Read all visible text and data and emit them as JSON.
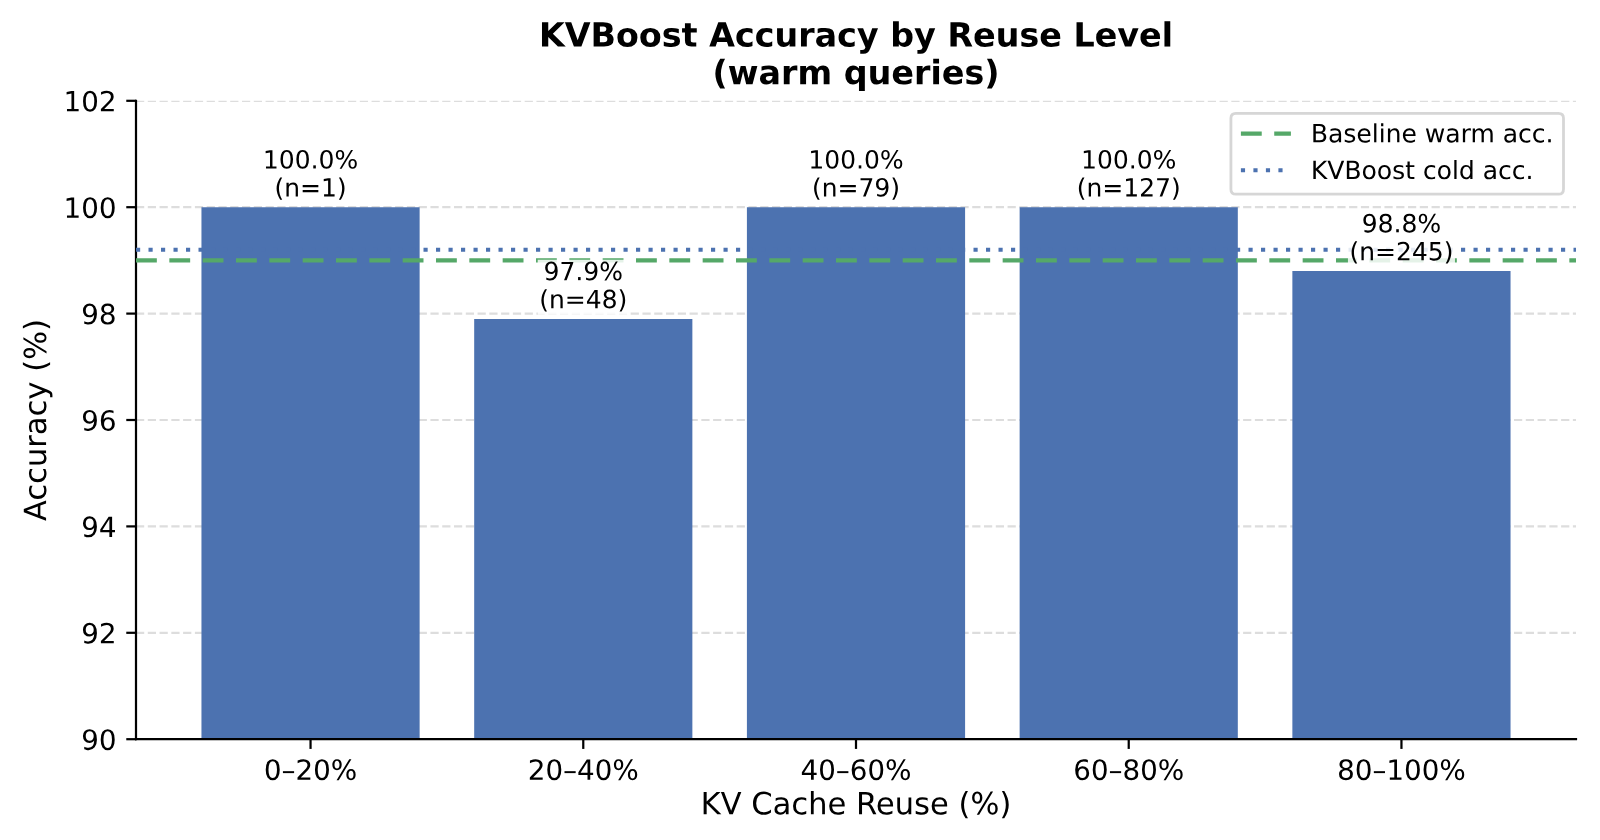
{
  "chart_data": {
    "type": "bar",
    "title": "KVBoost Accuracy by Reuse Level\n(warm queries)",
    "xlabel": "KV Cache Reuse (%)",
    "ylabel": "Accuracy (%)",
    "categories": [
      "0–20%",
      "20–40%",
      "40–60%",
      "60–80%",
      "80–100%"
    ],
    "values": [
      100.0,
      97.9,
      100.0,
      100.0,
      98.8
    ],
    "color": "#4c72b0",
    "value_labels": [
      "100.0%\n(n=1)",
      "97.9%\n(n=48)",
      "100.0%\n(n=79)",
      "100.0%\n(n=127)",
      "98.8%\n(n=245)"
    ],
    "ylim": [
      90,
      102
    ],
    "yticks": [
      90,
      92,
      94,
      96,
      98,
      100,
      102
    ],
    "grid": "y",
    "ref_lines": [
      {
        "axis": "y",
        "value": 99.0,
        "label": "Baseline warm acc.",
        "color": "#55a868",
        "line_style": "dashed"
      },
      {
        "axis": "y",
        "value": 99.2,
        "label": "KVBoost cold acc.",
        "color": "#4c72b0",
        "line_style": "dotted"
      }
    ],
    "legend": "top right"
  }
}
